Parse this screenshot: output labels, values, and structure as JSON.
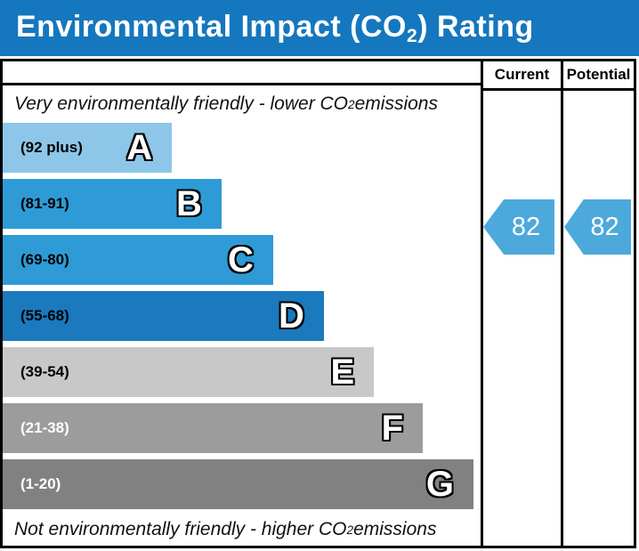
{
  "header": {
    "title_prefix": "Environmental Impact (CO",
    "title_sub": "2",
    "title_suffix": ") Rating",
    "title_bg": "#1577BE",
    "title_color": "#ffffff"
  },
  "table": {
    "columns": [
      "Current",
      "Potential"
    ]
  },
  "scale_top": {
    "prefix": "Very environmentally friendly - lower CO",
    "sub": "2",
    "suffix": " emissions"
  },
  "scale_bottom": {
    "prefix": "Not environmentally friendly - higher CO",
    "sub": "2",
    "suffix": " emissions"
  },
  "bands": [
    {
      "letter": "A",
      "range": "(92 plus)",
      "color": "#8DC6E8",
      "text_color": "#000000",
      "width_pct": 35.4
    },
    {
      "letter": "B",
      "range": "(81-91)",
      "color": "#2E9BD6",
      "text_color": "#000000",
      "width_pct": 45.8
    },
    {
      "letter": "C",
      "range": "(69-80)",
      "color": "#2E9BD6",
      "text_color": "#000000",
      "width_pct": 56.6
    },
    {
      "letter": "D",
      "range": "(55-68)",
      "color": "#1B79BE",
      "text_color": "#000000",
      "width_pct": 67.2
    },
    {
      "letter": "E",
      "range": "(39-54)",
      "color": "#C8C8C8",
      "text_color": "#000000",
      "width_pct": 77.7
    },
    {
      "letter": "F",
      "range": "(21-38)",
      "color": "#9C9C9C",
      "text_color": "#ffffff",
      "width_pct": 87.9
    },
    {
      "letter": "G",
      "range": "(1-20)",
      "color": "#818181",
      "text_color": "#ffffff",
      "width_pct": 98.5
    }
  ],
  "current": {
    "value": "82",
    "arrow_color": "#4DA9DB"
  },
  "potential": {
    "value": "82",
    "arrow_color": "#4DA9DB"
  },
  "chart_data": {
    "type": "bar",
    "title": "Environmental Impact (CO2) Rating",
    "categories": [
      "A",
      "B",
      "C",
      "D",
      "E",
      "F",
      "G"
    ],
    "band_ranges": [
      "92 plus",
      "81-91",
      "69-80",
      "55-68",
      "39-54",
      "21-38",
      "1-20"
    ],
    "bar_relative_widths_pct": [
      35.4,
      45.8,
      56.6,
      67.2,
      77.7,
      87.9,
      98.5
    ],
    "band_colors": [
      "#8DC6E8",
      "#2E9BD6",
      "#2E9BD6",
      "#1B79BE",
      "#C8C8C8",
      "#9C9C9C",
      "#818181"
    ],
    "columns": [
      "Current",
      "Potential"
    ],
    "current_rating": 82,
    "potential_rating": 82,
    "current_band": "B",
    "potential_band": "B",
    "annotation_top": "Very environmentally friendly - lower CO2 emissions",
    "annotation_bottom": "Not environmentally friendly - higher CO2 emissions",
    "legend_position": "none",
    "grid": false
  }
}
